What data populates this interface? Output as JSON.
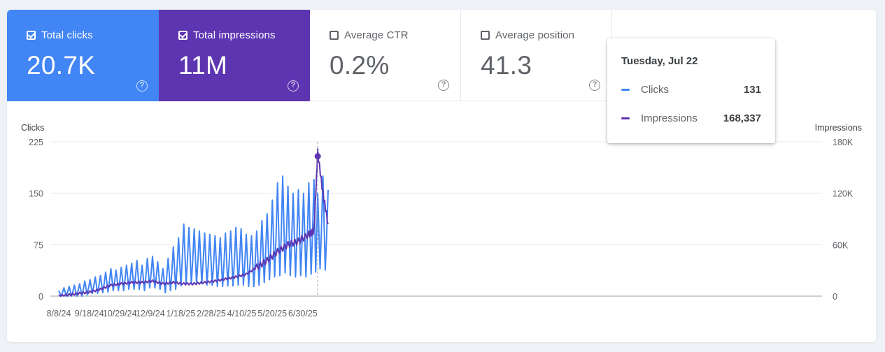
{
  "metrics": [
    {
      "id": "clicks",
      "label": "Total clicks",
      "value": "20.7K",
      "selected": true
    },
    {
      "id": "impressions",
      "label": "Total impressions",
      "value": "11M",
      "selected": true
    },
    {
      "id": "ctr",
      "label": "Average CTR",
      "value": "0.2%",
      "selected": false
    },
    {
      "id": "position",
      "label": "Average position",
      "value": "41.3",
      "selected": false
    }
  ],
  "help_glyph": "?",
  "tooltip": {
    "date": "Tuesday, Jul 22",
    "rows": [
      {
        "label": "Clicks",
        "value": "131"
      },
      {
        "label": "Impressions",
        "value": "168,337"
      }
    ]
  },
  "colors": {
    "clicks": "#4285f4",
    "impressions": "#5e35b1",
    "clicks_card": "#4285f4",
    "impressions_card": "#5e35b1"
  },
  "chart_data": {
    "type": "line",
    "xlabel": "",
    "left_axis": {
      "title": "Clicks",
      "ticks": [
        "225",
        "150",
        "75",
        "0"
      ],
      "range": [
        0,
        225
      ]
    },
    "right_axis": {
      "title": "Impressions",
      "ticks": [
        "180K",
        "120K",
        "60K",
        "0"
      ],
      "range": [
        0,
        180000
      ]
    },
    "x_ticks": [
      "8/8/24",
      "9/18/24",
      "10/29/24",
      "12/9/24",
      "1/18/25",
      "2/28/25",
      "4/10/25",
      "5/20/25",
      "6/30/25"
    ],
    "x_start": "2024-08-08",
    "highlight_date": "2025-07-22",
    "grid": true,
    "series": [
      {
        "name": "Clicks",
        "axis": "left",
        "dates": [
          "2024-08-08",
          "2024-08-15",
          "2024-08-22",
          "2024-08-29",
          "2024-09-05",
          "2024-09-12",
          "2024-09-19",
          "2024-09-26",
          "2024-10-03",
          "2024-10-10",
          "2024-10-17",
          "2024-10-24",
          "2024-10-31",
          "2024-11-07",
          "2024-11-14",
          "2024-11-21",
          "2024-11-28",
          "2024-12-05",
          "2024-12-12",
          "2024-12-19",
          "2024-12-26",
          "2025-01-02",
          "2025-01-09",
          "2025-01-16",
          "2025-01-23",
          "2025-01-30",
          "2025-02-06",
          "2025-02-13",
          "2025-02-20",
          "2025-02-27",
          "2025-03-06",
          "2025-03-13",
          "2025-03-20",
          "2025-03-27",
          "2025-04-03",
          "2025-04-10",
          "2025-04-17",
          "2025-04-24",
          "2025-05-01",
          "2025-05-08",
          "2025-05-15",
          "2025-05-22",
          "2025-05-29",
          "2025-06-05",
          "2025-06-12",
          "2025-06-19",
          "2025-06-26",
          "2025-07-03",
          "2025-07-10",
          "2025-07-17",
          "2025-07-22",
          "2025-07-29",
          "2025-08-05"
        ],
        "peaks": [
          8,
          12,
          14,
          16,
          18,
          22,
          24,
          28,
          30,
          35,
          40,
          38,
          42,
          45,
          48,
          52,
          45,
          55,
          58,
          50,
          40,
          55,
          72,
          85,
          105,
          100,
          98,
          95,
          92,
          90,
          88,
          85,
          92,
          95,
          100,
          98,
          90,
          88,
          95,
          110,
          120,
          140,
          165,
          175,
          160,
          150,
          155,
          150,
          165,
          170,
          150,
          175,
          155
        ],
        "troughs": [
          0,
          0,
          0,
          0,
          0,
          2,
          4,
          4,
          5,
          6,
          8,
          8,
          8,
          10,
          10,
          10,
          8,
          12,
          12,
          10,
          5,
          8,
          10,
          15,
          18,
          18,
          18,
          18,
          16,
          16,
          14,
          14,
          15,
          15,
          16,
          16,
          14,
          14,
          16,
          20,
          24,
          28,
          30,
          34,
          30,
          28,
          30,
          28,
          32,
          35,
          40,
          38,
          40
        ]
      },
      {
        "name": "Impressions",
        "axis": "left",
        "dates": [
          "2024-08-08",
          "2024-08-22",
          "2024-09-05",
          "2024-09-19",
          "2024-10-03",
          "2024-10-17",
          "2024-10-31",
          "2024-11-14",
          "2024-11-28",
          "2024-12-12",
          "2024-12-26",
          "2025-01-09",
          "2025-01-23",
          "2025-02-06",
          "2025-02-20",
          "2025-03-06",
          "2025-03-20",
          "2025-04-03",
          "2025-04-17",
          "2025-05-01",
          "2025-05-15",
          "2025-05-29",
          "2025-06-12",
          "2025-06-26",
          "2025-07-10",
          "2025-07-17",
          "2025-07-22",
          "2025-07-29",
          "2025-08-05"
        ],
        "values": [
          0,
          2,
          4,
          6,
          10,
          16,
          18,
          20,
          20,
          22,
          18,
          20,
          18,
          18,
          20,
          22,
          25,
          28,
          32,
          42,
          52,
          65,
          75,
          80,
          90,
          95,
          210,
          150,
          105
        ]
      }
    ]
  }
}
